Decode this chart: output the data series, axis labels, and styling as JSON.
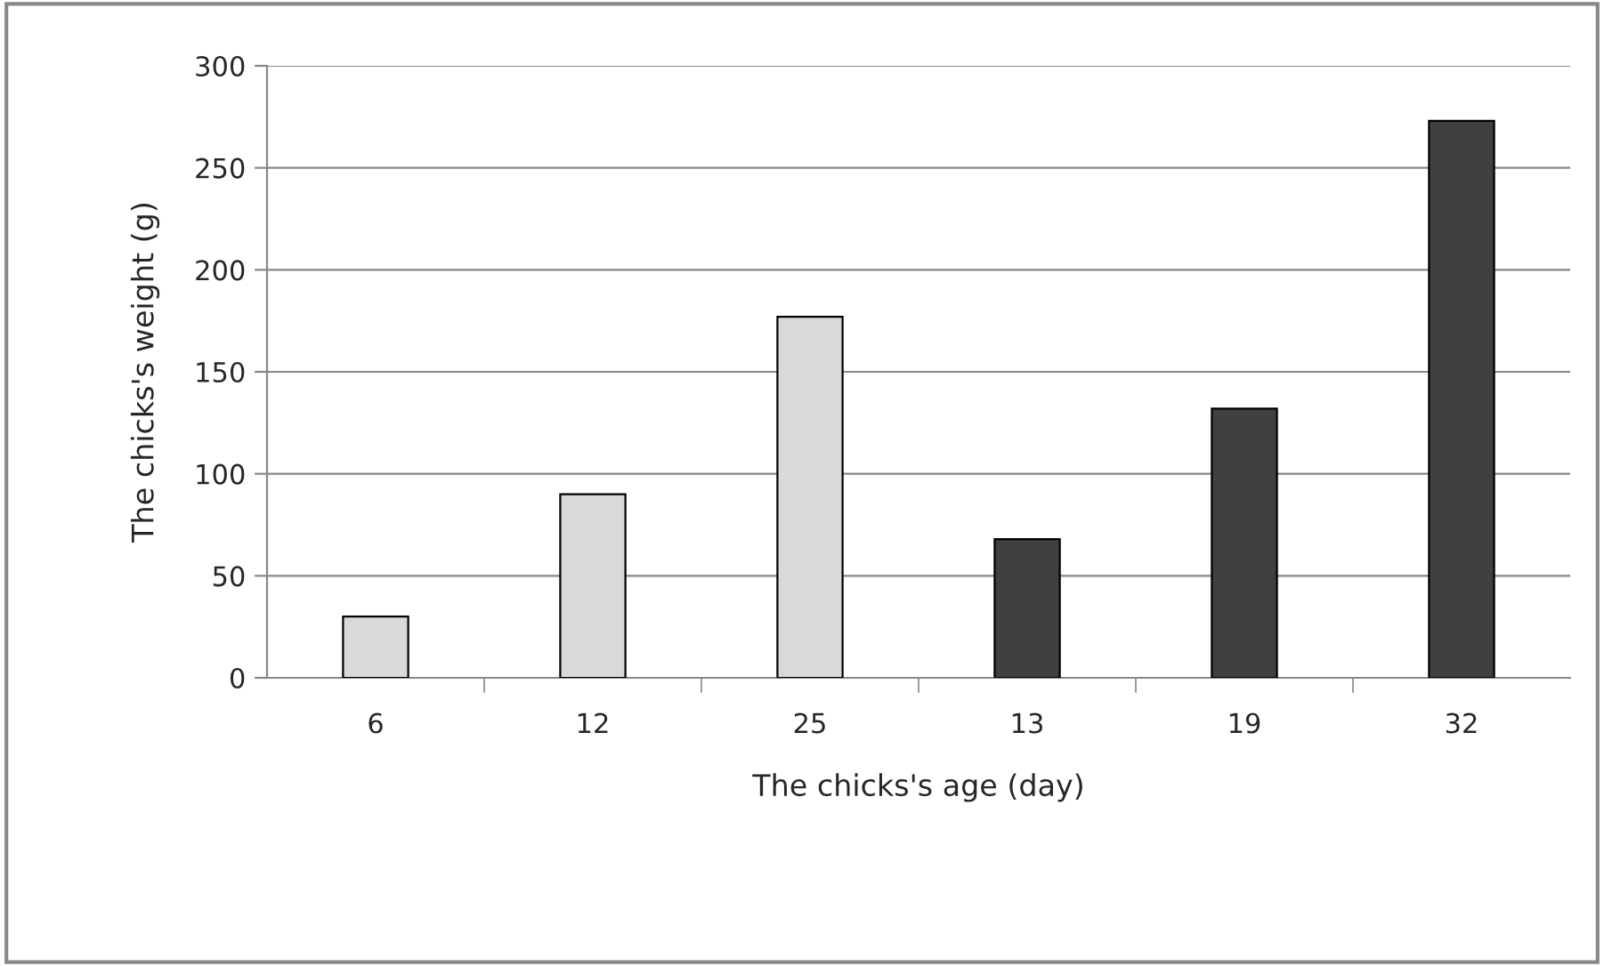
{
  "chart_data": {
    "type": "bar",
    "xlabel": "The chicks's age (day)",
    "ylabel": "The chicks's weight (g)",
    "categories": [
      "6",
      "12",
      "25",
      "13",
      "19",
      "32"
    ],
    "values": [
      30,
      90,
      177,
      68,
      132,
      273
    ],
    "colors": [
      "#d9d9d9",
      "#d9d9d9",
      "#d9d9d9",
      "#404040",
      "#404040",
      "#404040"
    ],
    "ylim": [
      0,
      300
    ],
    "yticks": [
      0,
      50,
      100,
      150,
      200,
      250,
      300
    ],
    "grid": "y",
    "legend": false
  }
}
